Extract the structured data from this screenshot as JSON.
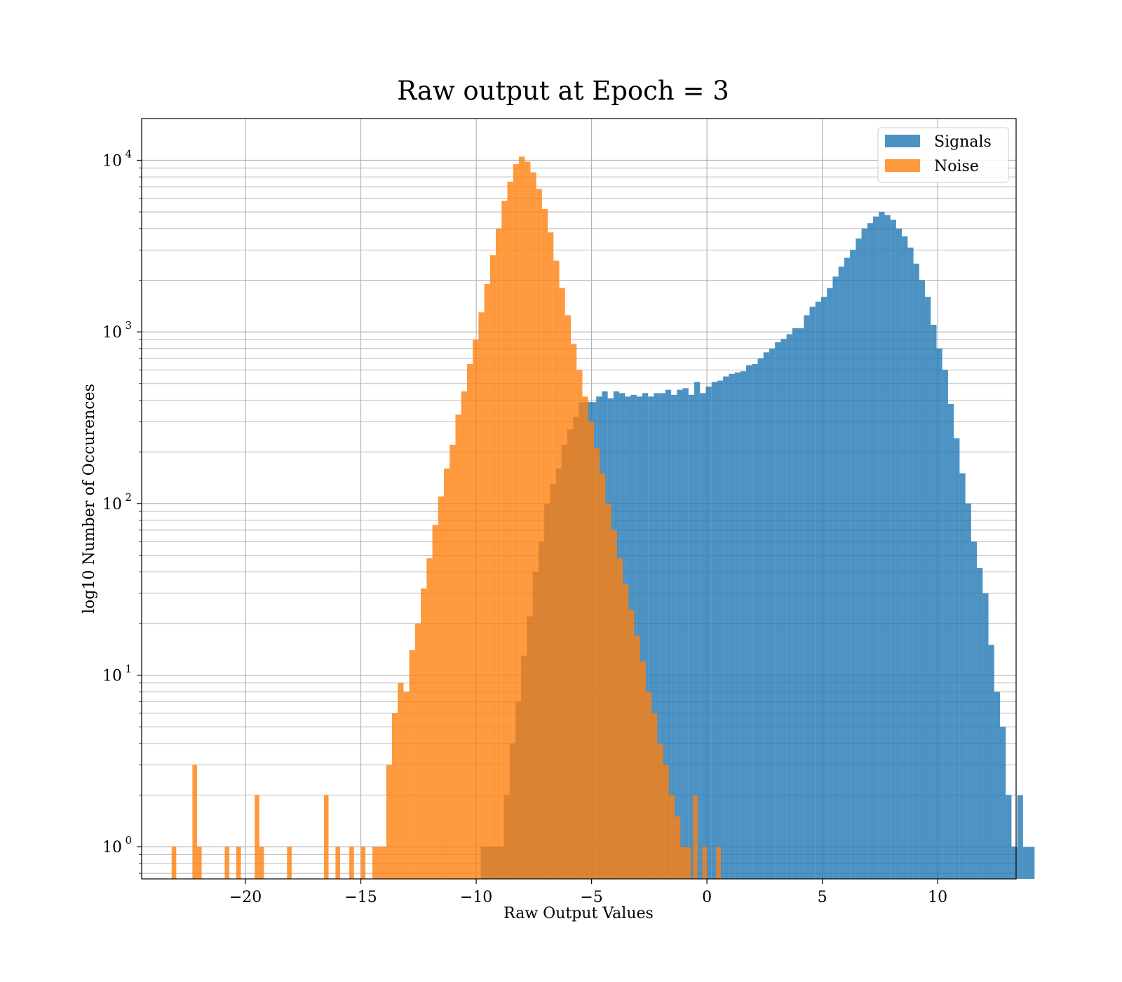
{
  "chart_data": {
    "type": "histogram",
    "title": "Raw output at Epoch = 3",
    "xlabel": "Raw Output Values",
    "ylabel": "log10 Number of Occurences",
    "xlim": [
      -24.5,
      13.4
    ],
    "ylim": [
      0.65,
      17500
    ],
    "yscale": "log",
    "grid": true,
    "legend_position": "top-right",
    "x_ticks": [
      {
        "value": -20,
        "label": "−20"
      },
      {
        "value": -15,
        "label": "−15"
      },
      {
        "value": -10,
        "label": "−10"
      },
      {
        "value": -5,
        "label": "−5"
      },
      {
        "value": 0,
        "label": "0"
      },
      {
        "value": 5,
        "label": "5"
      },
      {
        "value": 10,
        "label": "10"
      }
    ],
    "y_ticks": [
      {
        "value": 1,
        "base": "10",
        "exp": "0"
      },
      {
        "value": 10,
        "base": "10",
        "exp": "1"
      },
      {
        "value": 100,
        "base": "10",
        "exp": "2"
      },
      {
        "value": 1000,
        "base": "10",
        "exp": "3"
      },
      {
        "value": 10000,
        "base": "10",
        "exp": "4"
      }
    ],
    "series": [
      {
        "name": "Signals",
        "color": "#1f77b4",
        "opacity": 0.8,
        "bins": [
          [
            -9.8,
            -9.0,
            1
          ],
          [
            -9.0,
            -8.8,
            1
          ],
          [
            -8.8,
            -8.55,
            2
          ],
          [
            -8.55,
            -8.3,
            4
          ],
          [
            -8.3,
            -8.05,
            7
          ],
          [
            -8.05,
            -7.8,
            13
          ],
          [
            -7.8,
            -7.55,
            22
          ],
          [
            -7.55,
            -7.3,
            40
          ],
          [
            -7.3,
            -7.05,
            60
          ],
          [
            -7.05,
            -6.8,
            100
          ],
          [
            -6.8,
            -6.55,
            130
          ],
          [
            -6.55,
            -6.3,
            160
          ],
          [
            -6.3,
            -6.05,
            220
          ],
          [
            -6.05,
            -5.8,
            270
          ],
          [
            -5.8,
            -5.55,
            320
          ],
          [
            -5.55,
            -5.3,
            390
          ],
          [
            -5.3,
            -5.05,
            390
          ],
          [
            -5.05,
            -4.8,
            390
          ],
          [
            -4.8,
            -4.55,
            420
          ],
          [
            -4.55,
            -4.3,
            450
          ],
          [
            -4.3,
            -4.05,
            410
          ],
          [
            -4.05,
            -3.8,
            450
          ],
          [
            -3.8,
            -3.55,
            440
          ],
          [
            -3.55,
            -3.3,
            420
          ],
          [
            -3.3,
            -3.05,
            430
          ],
          [
            -3.05,
            -2.8,
            420
          ],
          [
            -2.8,
            -2.55,
            440
          ],
          [
            -2.55,
            -2.3,
            420
          ],
          [
            -2.3,
            -2.05,
            440
          ],
          [
            -2.05,
            -1.8,
            440
          ],
          [
            -1.8,
            -1.55,
            460
          ],
          [
            -1.55,
            -1.3,
            430
          ],
          [
            -1.3,
            -1.05,
            460
          ],
          [
            -1.05,
            -0.8,
            470
          ],
          [
            -0.8,
            -0.55,
            430
          ],
          [
            -0.55,
            -0.3,
            510
          ],
          [
            -0.3,
            -0.05,
            440
          ],
          [
            -0.05,
            0.2,
            480
          ],
          [
            0.2,
            0.45,
            510
          ],
          [
            0.45,
            0.7,
            520
          ],
          [
            0.7,
            0.95,
            550
          ],
          [
            0.95,
            1.2,
            570
          ],
          [
            1.2,
            1.45,
            580
          ],
          [
            1.45,
            1.7,
            590
          ],
          [
            1.7,
            1.95,
            640
          ],
          [
            1.95,
            2.2,
            650
          ],
          [
            2.2,
            2.45,
            700
          ],
          [
            2.45,
            2.7,
            760
          ],
          [
            2.7,
            2.95,
            800
          ],
          [
            2.95,
            3.2,
            870
          ],
          [
            3.2,
            3.45,
            910
          ],
          [
            3.45,
            3.7,
            970
          ],
          [
            3.7,
            3.95,
            1050
          ],
          [
            3.95,
            4.2,
            1050
          ],
          [
            4.2,
            4.45,
            1250
          ],
          [
            4.45,
            4.7,
            1400
          ],
          [
            4.7,
            4.95,
            1500
          ],
          [
            4.95,
            5.2,
            1600
          ],
          [
            5.2,
            5.45,
            1800
          ],
          [
            5.45,
            5.7,
            2100
          ],
          [
            5.7,
            5.95,
            2400
          ],
          [
            5.95,
            6.2,
            2700
          ],
          [
            6.2,
            6.45,
            3000
          ],
          [
            6.45,
            6.7,
            3500
          ],
          [
            6.7,
            6.95,
            4000
          ],
          [
            6.95,
            7.2,
            4300
          ],
          [
            7.2,
            7.45,
            4700
          ],
          [
            7.45,
            7.7,
            5000
          ],
          [
            7.7,
            7.95,
            4800
          ],
          [
            7.95,
            8.2,
            4500
          ],
          [
            8.2,
            8.45,
            4000
          ],
          [
            8.45,
            8.7,
            3600
          ],
          [
            8.7,
            8.95,
            3100
          ],
          [
            8.95,
            9.2,
            2500
          ],
          [
            9.2,
            9.45,
            2000
          ],
          [
            9.45,
            9.7,
            1600
          ],
          [
            9.7,
            9.95,
            1100
          ],
          [
            9.95,
            10.2,
            800
          ],
          [
            10.2,
            10.45,
            600
          ],
          [
            10.45,
            10.7,
            380
          ],
          [
            10.7,
            10.95,
            240
          ],
          [
            10.95,
            11.2,
            150
          ],
          [
            11.2,
            11.45,
            100
          ],
          [
            11.45,
            11.7,
            60
          ],
          [
            11.7,
            11.95,
            42
          ],
          [
            11.95,
            12.2,
            30
          ],
          [
            12.2,
            12.45,
            15
          ],
          [
            12.45,
            12.7,
            8
          ],
          [
            12.7,
            12.95,
            5
          ],
          [
            12.95,
            13.2,
            2
          ],
          [
            13.2,
            13.45,
            1
          ],
          [
            13.45,
            13.7,
            2
          ],
          [
            13.7,
            14.2,
            1
          ]
        ]
      },
      {
        "name": "Noise",
        "color": "#ff7f0e",
        "opacity": 0.8,
        "bins": [
          [
            -23.2,
            -23.0,
            1
          ],
          [
            -22.3,
            -22.1,
            3
          ],
          [
            -22.1,
            -21.9,
            1
          ],
          [
            -20.9,
            -20.7,
            1
          ],
          [
            -20.4,
            -20.2,
            1
          ],
          [
            -19.6,
            -19.4,
            2
          ],
          [
            -19.4,
            -19.2,
            1
          ],
          [
            -18.2,
            -18.0,
            1
          ],
          [
            -16.6,
            -16.4,
            2
          ],
          [
            -16.1,
            -15.9,
            1
          ],
          [
            -15.5,
            -15.3,
            1
          ],
          [
            -15.0,
            -14.8,
            1
          ],
          [
            -14.5,
            -14.3,
            1
          ],
          [
            -14.3,
            -14.1,
            1
          ],
          [
            -14.1,
            -13.9,
            1
          ],
          [
            -13.9,
            -13.65,
            3
          ],
          [
            -13.65,
            -13.4,
            6
          ],
          [
            -13.4,
            -13.15,
            9
          ],
          [
            -13.15,
            -12.9,
            8
          ],
          [
            -12.9,
            -12.65,
            14
          ],
          [
            -12.65,
            -12.4,
            20
          ],
          [
            -12.4,
            -12.15,
            32
          ],
          [
            -12.15,
            -11.9,
            48
          ],
          [
            -11.9,
            -11.65,
            75
          ],
          [
            -11.65,
            -11.4,
            110
          ],
          [
            -11.4,
            -11.15,
            160
          ],
          [
            -11.15,
            -10.9,
            220
          ],
          [
            -10.9,
            -10.65,
            330
          ],
          [
            -10.65,
            -10.4,
            450
          ],
          [
            -10.4,
            -10.15,
            650
          ],
          [
            -10.15,
            -9.9,
            900
          ],
          [
            -9.9,
            -9.65,
            1300
          ],
          [
            -9.65,
            -9.4,
            1900
          ],
          [
            -9.4,
            -9.15,
            2800
          ],
          [
            -9.15,
            -8.9,
            4000
          ],
          [
            -8.9,
            -8.65,
            5800
          ],
          [
            -8.65,
            -8.4,
            7500
          ],
          [
            -8.4,
            -8.15,
            9500
          ],
          [
            -8.15,
            -7.9,
            10500
          ],
          [
            -7.9,
            -7.65,
            9800
          ],
          [
            -7.65,
            -7.4,
            8500
          ],
          [
            -7.4,
            -7.15,
            6800
          ],
          [
            -7.15,
            -6.9,
            5200
          ],
          [
            -6.9,
            -6.65,
            3800
          ],
          [
            -6.65,
            -6.4,
            2600
          ],
          [
            -6.4,
            -6.15,
            1800
          ],
          [
            -6.15,
            -5.9,
            1250
          ],
          [
            -5.9,
            -5.65,
            850
          ],
          [
            -5.65,
            -5.4,
            600
          ],
          [
            -5.4,
            -5.15,
            420
          ],
          [
            -5.15,
            -4.9,
            300
          ],
          [
            -4.9,
            -4.65,
            210
          ],
          [
            -4.65,
            -4.4,
            150
          ],
          [
            -4.4,
            -4.15,
            100
          ],
          [
            -4.15,
            -3.9,
            70
          ],
          [
            -3.9,
            -3.65,
            48
          ],
          [
            -3.65,
            -3.4,
            34
          ],
          [
            -3.4,
            -3.15,
            24
          ],
          [
            -3.15,
            -2.9,
            17
          ],
          [
            -2.9,
            -2.65,
            12
          ],
          [
            -2.65,
            -2.4,
            8
          ],
          [
            -2.4,
            -2.15,
            6
          ],
          [
            -2.15,
            -1.9,
            4
          ],
          [
            -1.9,
            -1.65,
            3
          ],
          [
            -1.65,
            -1.4,
            2
          ],
          [
            -1.4,
            -1.15,
            1.5
          ],
          [
            -1.15,
            -0.9,
            1
          ],
          [
            -0.9,
            -0.7,
            1
          ],
          [
            -0.6,
            -0.4,
            2
          ],
          [
            -0.2,
            0.0,
            1
          ],
          [
            0.4,
            0.6,
            1
          ]
        ]
      }
    ]
  }
}
